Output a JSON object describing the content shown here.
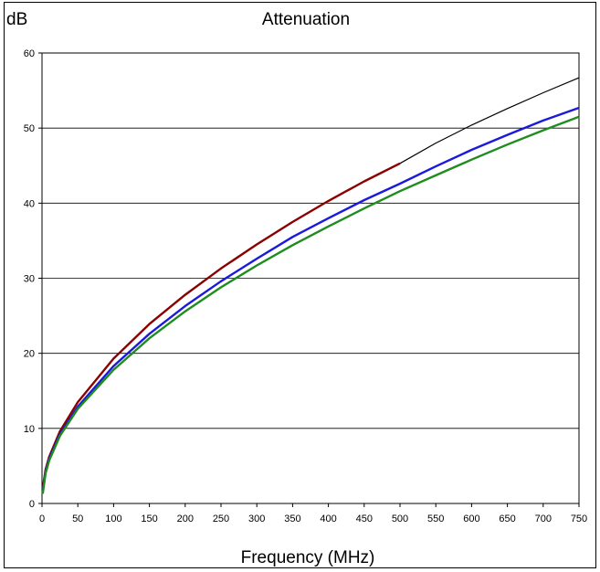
{
  "chart_data": {
    "type": "line",
    "title": "Attenuation",
    "ylabel": "dB",
    "xlabel": "Frequency (MHz)",
    "xlim": [
      0,
      750
    ],
    "ylim": [
      0,
      60
    ],
    "x_ticks": [
      0,
      50,
      100,
      150,
      200,
      250,
      300,
      350,
      400,
      450,
      500,
      550,
      600,
      650,
      700,
      750
    ],
    "y_ticks": [
      0,
      10,
      20,
      30,
      40,
      50,
      60
    ],
    "grid": "horizontal",
    "legend": "none",
    "series": [
      {
        "color": "#000000",
        "x": [
          1,
          5,
          10,
          25,
          50,
          100,
          150,
          200,
          250,
          300,
          350,
          400,
          450,
          500,
          550,
          600,
          650,
          700,
          750
        ],
        "values": [
          2.0,
          4.5,
          6.2,
          9.6,
          13.5,
          19.3,
          23.9,
          27.8,
          31.3,
          34.5,
          37.5,
          40.3,
          42.9,
          45.3,
          48.0,
          50.4,
          52.6,
          54.7,
          56.7
        ]
      },
      {
        "color": "#8b0000",
        "x": [
          1,
          5,
          10,
          25,
          50,
          100,
          150,
          200,
          250,
          300,
          350,
          400,
          450,
          500
        ],
        "values": [
          2.0,
          4.5,
          6.2,
          9.6,
          13.5,
          19.3,
          23.9,
          27.8,
          31.3,
          34.5,
          37.5,
          40.3,
          42.9,
          45.3
        ]
      },
      {
        "color": "#1a1adc",
        "x": [
          1,
          5,
          10,
          25,
          50,
          100,
          150,
          200,
          250,
          300,
          350,
          400,
          450,
          500,
          550,
          600,
          650,
          700,
          750
        ],
        "values": [
          1.5,
          4.2,
          5.9,
          9.2,
          12.9,
          18.3,
          22.6,
          26.3,
          29.6,
          32.6,
          35.5,
          38.0,
          40.4,
          42.6,
          44.9,
          47.1,
          49.1,
          51.0,
          52.7
        ]
      },
      {
        "color": "#1e8c1e",
        "x": [
          1,
          5,
          10,
          25,
          50,
          100,
          150,
          200,
          250,
          300,
          350,
          400,
          450,
          500,
          550,
          600,
          650,
          700,
          750
        ],
        "values": [
          1.3,
          4.0,
          5.7,
          9.0,
          12.6,
          17.8,
          22.0,
          25.6,
          28.8,
          31.7,
          34.4,
          36.9,
          39.3,
          41.6,
          43.7,
          45.8,
          47.8,
          49.7,
          51.5
        ]
      }
    ]
  }
}
